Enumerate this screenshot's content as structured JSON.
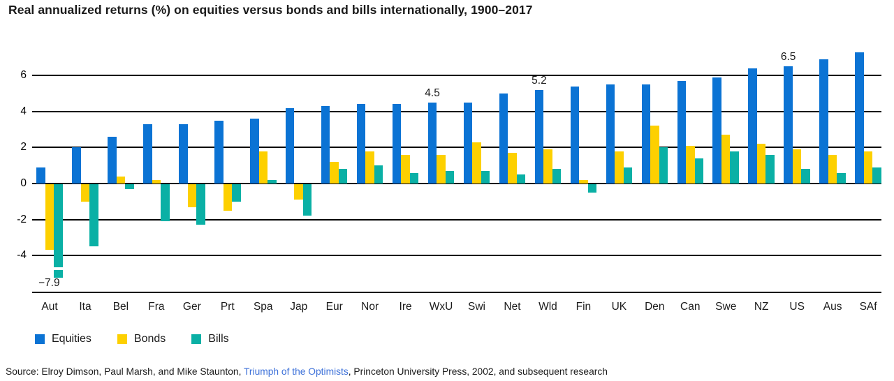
{
  "title": "Real annualized returns (%) on equities versus bonds and bills internationally, 1900–2017",
  "colors": {
    "equities": "#0b73d4",
    "bonds": "#fdd000",
    "bills": "#0ab0a5",
    "grid": "#000000",
    "text": "#1a1a1a",
    "link": "#3d71d9"
  },
  "legend": [
    {
      "key": "equities",
      "label": "Equities"
    },
    {
      "key": "bonds",
      "label": "Bonds"
    },
    {
      "key": "bills",
      "label": "Bills"
    }
  ],
  "source": {
    "prefix": "Source: Elroy Dimson, Paul Marsh, and Mike Staunton, ",
    "link": "Triumph of the Optimists",
    "suffix": ", Princeton University Press, 2002, and subsequent research"
  },
  "chart_data": {
    "type": "bar",
    "title": "Real annualized returns (%) on equities versus bonds and bills internationally, 1900–2017",
    "categories": [
      "Aut",
      "Ita",
      "Bel",
      "Fra",
      "Ger",
      "Prt",
      "Spa",
      "Jap",
      "Eur",
      "Nor",
      "Ire",
      "WxU",
      "Swi",
      "Net",
      "Wld",
      "Fin",
      "UK",
      "Den",
      "Can",
      "Swe",
      "NZ",
      "US",
      "Aus",
      "SAf"
    ],
    "series": [
      {
        "key": "equities",
        "name": "Equities",
        "values": [
          0.9,
          2.0,
          2.6,
          3.3,
          3.3,
          3.5,
          3.6,
          4.2,
          4.3,
          4.4,
          4.4,
          4.5,
          4.5,
          5.0,
          5.2,
          5.4,
          5.5,
          5.5,
          5.7,
          5.9,
          6.4,
          6.5,
          6.9,
          7.3
        ]
      },
      {
        "key": "bonds",
        "name": "Bonds",
        "values": [
          -3.7,
          -1.0,
          0.4,
          0.2,
          -1.3,
          -1.5,
          1.8,
          -0.9,
          1.2,
          1.8,
          1.6,
          1.6,
          2.3,
          1.7,
          1.9,
          0.2,
          1.8,
          3.2,
          2.1,
          2.7,
          2.2,
          1.9,
          1.6,
          1.8
        ]
      },
      {
        "key": "bills",
        "name": "Bills",
        "values": [
          -7.9,
          -3.5,
          -0.3,
          -2.1,
          -2.3,
          -1.0,
          0.2,
          -1.8,
          0.8,
          1.0,
          0.6,
          0.7,
          0.7,
          0.5,
          0.8,
          -0.5,
          0.9,
          2.0,
          1.4,
          1.8,
          1.6,
          0.8,
          0.6,
          0.9
        ]
      }
    ],
    "ylabel": "",
    "xlabel": "",
    "yticks": [
      6,
      4,
      2,
      0,
      -2,
      -4
    ],
    "ytick_labels": [
      "6",
      "4",
      "2",
      "0",
      "-2",
      "-4"
    ],
    "ylim_drawn": [
      -6,
      7.6
    ],
    "grid": true,
    "legend_position": "bottom-left",
    "annotations": [
      {
        "category": "Aut",
        "series": "bills",
        "text": "−7.9",
        "position": "below"
      },
      {
        "category": "WxU",
        "series": "equities",
        "text": "4.5",
        "position": "above"
      },
      {
        "category": "Wld",
        "series": "equities",
        "text": "5.2",
        "position": "above"
      },
      {
        "category": "US",
        "series": "equities",
        "text": "6.5",
        "position": "above"
      }
    ],
    "truncated_bar": {
      "category": "Aut",
      "series": "bills",
      "actual": -7.9,
      "drawn_to": -4.65,
      "stub_from": -4.82,
      "stub_to": -5.22
    }
  }
}
